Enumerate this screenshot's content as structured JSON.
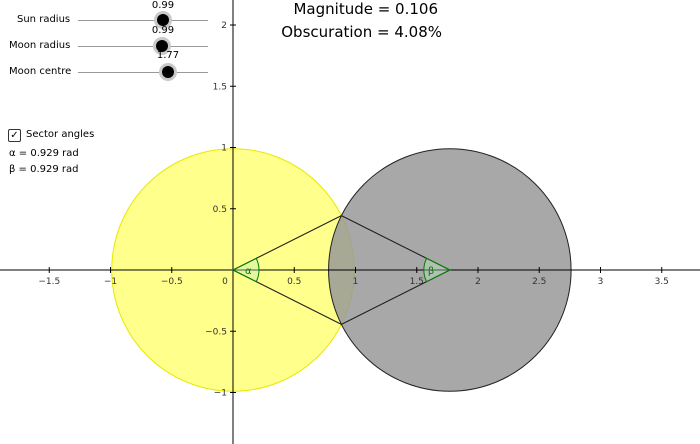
{
  "sliders": [
    {
      "label": "Sun radius",
      "value_text": "0.99",
      "value": 0.99
    },
    {
      "label": "Moon radius",
      "value_text": "0.99",
      "value": 0.99
    },
    {
      "label": "Moon centre",
      "value_text": "1.77",
      "value": 1.77
    }
  ],
  "info": {
    "magnitude": "Magnitude = 0.106",
    "obscuration": "Obscuration = 4.08%"
  },
  "checkbox": {
    "label": "Sector angles",
    "checked": true,
    "check_glyph": "✓"
  },
  "angles": {
    "alpha": "α = 0.929 rad",
    "beta": "β = 0.929 rad"
  },
  "angle_marks": {
    "alpha": "α",
    "beta": "β"
  },
  "x_ticks": [
    "−1.5",
    "−1",
    "−0.5",
    "0",
    "0.5",
    "1",
    "1.5",
    "2",
    "2.5",
    "3",
    "3.5"
  ],
  "y_ticks_pos": [
    "2",
    "1.5",
    "1",
    "0.5"
  ],
  "y_ticks_neg": [
    "−0.5",
    "−1"
  ],
  "geometry": {
    "sun_center": [
      0,
      0
    ],
    "sun_radius": 0.99,
    "moon_center": [
      1.77,
      0
    ],
    "moon_radius": 0.99,
    "alpha": 0.929,
    "beta": 0.929
  },
  "colors": {
    "sun_fill": "#ffff66",
    "sun_stroke": "#e8e800",
    "moon_fill": "#999999",
    "moon_stroke": "#222222",
    "angle_mark": "#007f00"
  }
}
